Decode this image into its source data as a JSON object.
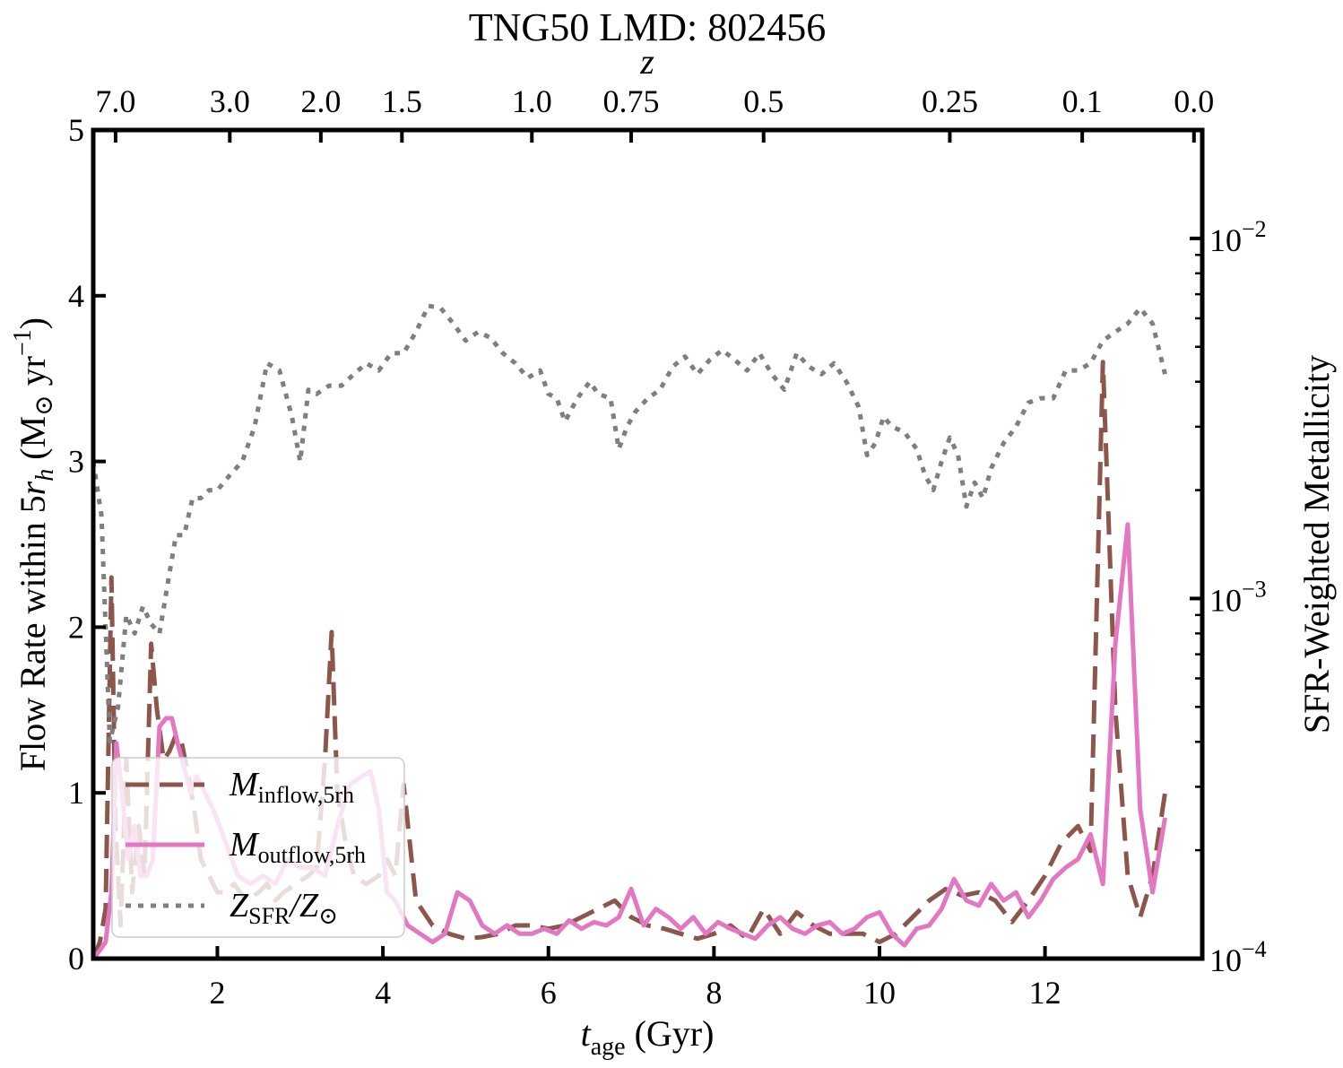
{
  "chart_data": {
    "type": "line",
    "title": "TNG50 LMD: 802456",
    "xlabel_var": "t",
    "xlabel_sub": "age",
    "xlabel_unit": " (Gyr)",
    "ylabel_left": "Flow Rate within 5r_h (M_sun yr^-1)",
    "ylabel_left_prefix": "Flow Rate within 5",
    "ylabel_left_r": "r",
    "ylabel_left_h": "h",
    "ylabel_left_unit_open": " (M",
    "ylabel_left_sun": "⊙",
    "ylabel_left_yr": " yr",
    "ylabel_left_exp": "−1",
    "ylabel_left_close": ")",
    "ylabel_right": "SFR-Weighted Metallicity",
    "top_axis_label": "z",
    "xlim": [
      0.5,
      13.9
    ],
    "ylim_left": [
      0,
      5
    ],
    "ylim_right": [
      0.0001,
      0.02
    ],
    "x_ticks": [
      2,
      4,
      6,
      8,
      10,
      12
    ],
    "y_ticks_left": [
      0,
      1,
      2,
      3,
      4,
      5
    ],
    "y_ticks_right": [
      {
        "base": "10",
        "exp": "−4",
        "value": 0.0001
      },
      {
        "base": "10",
        "exp": "−3",
        "value": 0.001
      },
      {
        "base": "10",
        "exp": "−2",
        "value": 0.01
      }
    ],
    "top_ticks": [
      {
        "label": "7.0",
        "t": 0.77
      },
      {
        "label": "3.0",
        "t": 2.15
      },
      {
        "label": "2.0",
        "t": 3.25
      },
      {
        "label": "1.5",
        "t": 4.23
      },
      {
        "label": "1.0",
        "t": 5.8
      },
      {
        "label": "0.75",
        "t": 7.0
      },
      {
        "label": "0.5",
        "t": 8.6
      },
      {
        "label": "0.25",
        "t": 10.85
      },
      {
        "label": "0.1",
        "t": 12.45
      },
      {
        "label": "0.0",
        "t": 13.8
      }
    ],
    "colors": {
      "inflow": "#8c564b",
      "outflow": "#e377c2",
      "metallicity": "#7f7f7f"
    },
    "legend": {
      "location": "lower-left",
      "entries": [
        {
          "name": "inflow",
          "var": "M",
          "sub": "inflow,5rh",
          "sub2": "",
          "slash": "",
          "style": "dashed"
        },
        {
          "name": "outflow",
          "var": "M",
          "sub": "outflow,5rh",
          "sub2": "",
          "slash": "",
          "style": "solid"
        },
        {
          "name": "metallicity",
          "var": "Z",
          "sub": "SFR",
          "slash": "/Z",
          "sub2": "⊙",
          "style": "dotted"
        }
      ]
    },
    "series": [
      {
        "name": "M_inflow,5rh",
        "axis": "left",
        "style": "dashed",
        "x": [
          0.5,
          0.58,
          0.65,
          0.72,
          0.77,
          0.83,
          0.9,
          0.97,
          1.05,
          1.12,
          1.2,
          1.27,
          1.35,
          1.42,
          1.5,
          1.57,
          1.65,
          1.72,
          1.8,
          1.9,
          2.0,
          2.1,
          2.2,
          2.35,
          2.5,
          2.6,
          2.7,
          2.8,
          2.95,
          3.1,
          3.2,
          3.3,
          3.38,
          3.45,
          3.55,
          3.65,
          3.8,
          3.95,
          4.05,
          4.15,
          4.25,
          4.4,
          4.6,
          4.8,
          5.0,
          5.2,
          5.4,
          5.6,
          5.8,
          6.0,
          6.2,
          6.4,
          6.6,
          6.8,
          7.0,
          7.2,
          7.4,
          7.6,
          7.8,
          8.0,
          8.2,
          8.4,
          8.6,
          8.8,
          9.0,
          9.2,
          9.4,
          9.6,
          9.8,
          10.0,
          10.2,
          10.4,
          10.6,
          10.8,
          11.0,
          11.2,
          11.4,
          11.6,
          11.8,
          12.0,
          12.2,
          12.4,
          12.55,
          12.7,
          12.85,
          13.0,
          13.15,
          13.3,
          13.45
        ],
        "y": [
          0.0,
          0.1,
          0.3,
          2.3,
          0.8,
          0.2,
          1.2,
          0.4,
          0.8,
          0.5,
          1.9,
          1.5,
          1.2,
          1.25,
          1.35,
          1.3,
          1.1,
          0.9,
          0.6,
          0.5,
          0.4,
          0.4,
          0.45,
          0.35,
          0.4,
          0.45,
          0.35,
          0.4,
          0.45,
          0.5,
          0.55,
          1.2,
          1.97,
          1.0,
          0.7,
          0.5,
          0.45,
          0.5,
          0.6,
          0.5,
          1.05,
          0.35,
          0.2,
          0.15,
          0.12,
          0.13,
          0.15,
          0.2,
          0.2,
          0.18,
          0.2,
          0.25,
          0.3,
          0.35,
          0.25,
          0.2,
          0.18,
          0.15,
          0.12,
          0.15,
          0.2,
          0.12,
          0.3,
          0.15,
          0.28,
          0.2,
          0.15,
          0.15,
          0.15,
          0.1,
          0.15,
          0.25,
          0.35,
          0.42,
          0.38,
          0.4,
          0.35,
          0.22,
          0.35,
          0.5,
          0.7,
          0.8,
          0.65,
          3.6,
          1.5,
          0.5,
          0.25,
          0.5,
          1.0
        ]
      },
      {
        "name": "M_outflow,5rh",
        "axis": "left",
        "style": "solid",
        "x": [
          0.5,
          0.58,
          0.65,
          0.72,
          0.78,
          0.85,
          0.92,
          1.0,
          1.07,
          1.15,
          1.22,
          1.3,
          1.38,
          1.45,
          1.52,
          1.6,
          1.68,
          1.75,
          1.85,
          1.95,
          2.1,
          2.25,
          2.4,
          2.55,
          2.7,
          2.85,
          3.0,
          3.15,
          3.3,
          3.45,
          3.6,
          3.75,
          3.85,
          3.95,
          4.05,
          4.15,
          4.3,
          4.45,
          4.6,
          4.75,
          4.9,
          5.05,
          5.2,
          5.35,
          5.5,
          5.65,
          5.8,
          5.95,
          6.1,
          6.25,
          6.4,
          6.55,
          6.7,
          6.85,
          7.0,
          7.15,
          7.3,
          7.45,
          7.6,
          7.75,
          7.9,
          8.05,
          8.2,
          8.35,
          8.5,
          8.65,
          8.8,
          8.95,
          9.1,
          9.25,
          9.4,
          9.55,
          9.7,
          9.85,
          10.0,
          10.15,
          10.3,
          10.45,
          10.6,
          10.75,
          10.9,
          11.05,
          11.2,
          11.35,
          11.5,
          11.65,
          11.8,
          11.95,
          12.1,
          12.25,
          12.4,
          12.55,
          12.7,
          12.85,
          13.0,
          13.15,
          13.3,
          13.45
        ],
        "y": [
          0.0,
          0.05,
          0.1,
          0.4,
          1.3,
          1.0,
          0.6,
          0.8,
          0.5,
          0.5,
          0.6,
          1.4,
          1.45,
          1.45,
          1.3,
          1.15,
          1.0,
          1.1,
          1.0,
          0.9,
          0.7,
          0.5,
          0.45,
          0.5,
          0.45,
          0.6,
          0.55,
          0.55,
          0.5,
          0.8,
          1.05,
          1.1,
          1.13,
          0.9,
          0.4,
          0.35,
          0.2,
          0.15,
          0.1,
          0.15,
          0.4,
          0.35,
          0.2,
          0.15,
          0.2,
          0.15,
          0.15,
          0.18,
          0.15,
          0.23,
          0.18,
          0.22,
          0.2,
          0.25,
          0.42,
          0.2,
          0.3,
          0.25,
          0.18,
          0.25,
          0.15,
          0.22,
          0.18,
          0.15,
          0.12,
          0.2,
          0.25,
          0.18,
          0.15,
          0.2,
          0.22,
          0.15,
          0.18,
          0.25,
          0.28,
          0.15,
          0.08,
          0.18,
          0.2,
          0.3,
          0.48,
          0.35,
          0.32,
          0.45,
          0.35,
          0.4,
          0.25,
          0.35,
          0.48,
          0.55,
          0.6,
          0.75,
          0.45,
          1.9,
          2.62,
          0.9,
          0.4,
          0.85
        ]
      },
      {
        "name": "Z_SFR/Z_sun",
        "axis": "right",
        "style": "dotted",
        "x": [
          0.5,
          0.6,
          0.7,
          0.8,
          0.9,
          1.0,
          1.1,
          1.2,
          1.3,
          1.4,
          1.5,
          1.6,
          1.7,
          1.8,
          1.9,
          2.0,
          2.15,
          2.3,
          2.45,
          2.6,
          2.75,
          2.9,
          3.0,
          3.1,
          3.2,
          3.35,
          3.5,
          3.65,
          3.8,
          3.95,
          4.1,
          4.25,
          4.4,
          4.55,
          4.7,
          4.85,
          5.0,
          5.15,
          5.3,
          5.45,
          5.6,
          5.75,
          5.9,
          6.0,
          6.1,
          6.2,
          6.35,
          6.5,
          6.6,
          6.75,
          6.85,
          6.95,
          7.05,
          7.2,
          7.35,
          7.5,
          7.65,
          7.8,
          7.95,
          8.1,
          8.25,
          8.4,
          8.55,
          8.7,
          8.85,
          9.0,
          9.15,
          9.3,
          9.45,
          9.6,
          9.75,
          9.85,
          9.95,
          10.05,
          10.15,
          10.3,
          10.45,
          10.55,
          10.65,
          10.75,
          10.85,
          10.95,
          11.05,
          11.15,
          11.25,
          11.35,
          11.5,
          11.65,
          11.8,
          11.95,
          12.1,
          12.25,
          12.4,
          12.55,
          12.7,
          12.85,
          13.0,
          13.15,
          13.3,
          13.45
        ],
        "y": [
          0.0024,
          0.0017,
          0.0004,
          0.0005,
          0.0009,
          0.0008,
          0.00095,
          0.00085,
          0.0008,
          0.0011,
          0.0015,
          0.0015,
          0.0019,
          0.0019,
          0.002,
          0.002,
          0.0022,
          0.0024,
          0.003,
          0.0045,
          0.0043,
          0.0032,
          0.0024,
          0.0038,
          0.0037,
          0.0039,
          0.0039,
          0.0042,
          0.0045,
          0.0043,
          0.0048,
          0.0048,
          0.0055,
          0.0065,
          0.0064,
          0.0058,
          0.0052,
          0.0055,
          0.0053,
          0.0048,
          0.0045,
          0.0041,
          0.0043,
          0.0037,
          0.0036,
          0.0031,
          0.0036,
          0.004,
          0.0037,
          0.0036,
          0.0026,
          0.003,
          0.0033,
          0.0036,
          0.0038,
          0.0044,
          0.0047,
          0.0042,
          0.0046,
          0.0049,
          0.0046,
          0.0043,
          0.0048,
          0.0042,
          0.0038,
          0.0048,
          0.0044,
          0.0042,
          0.0045,
          0.004,
          0.0034,
          0.0025,
          0.0027,
          0.0032,
          0.003,
          0.0029,
          0.0026,
          0.0022,
          0.002,
          0.0024,
          0.0028,
          0.0025,
          0.0018,
          0.0021,
          0.0019,
          0.0023,
          0.0027,
          0.003,
          0.0035,
          0.0036,
          0.0036,
          0.0043,
          0.0043,
          0.0045,
          0.0052,
          0.0055,
          0.0058,
          0.0064,
          0.0058,
          0.0042
        ]
      }
    ]
  }
}
